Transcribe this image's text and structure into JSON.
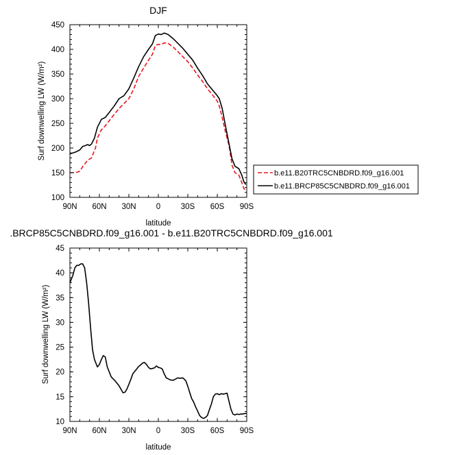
{
  "chart_data": [
    {
      "type": "line",
      "title": "DJF",
      "xlabel": "latitude",
      "ylabel": "Surf downwelling LW (W/m²)",
      "x_ticks": [
        -90,
        -60,
        -30,
        0,
        30,
        60,
        90
      ],
      "x_tick_labels": [
        "90N",
        "60N",
        "30N",
        "0",
        "30S",
        "60S",
        "90S"
      ],
      "xlim": [
        -90,
        90
      ],
      "ylim": [
        100,
        450
      ],
      "y_ticks": [
        100,
        150,
        200,
        250,
        300,
        350,
        400,
        450
      ],
      "y_tick_labels": [
        "100",
        "150",
        "200",
        "250",
        "300",
        "350",
        "400",
        "450"
      ],
      "legend_position": "right",
      "series": [
        {
          "name": "b.e11.B20TRC5CNBDRD.f09_g16.001",
          "color": "#e8141c",
          "style": "dashed",
          "x": [
            -90,
            -84,
            -80,
            -76,
            -72,
            -68,
            -64,
            -62,
            -58,
            -54,
            -50,
            -45,
            -40,
            -35,
            -30,
            -25,
            -20,
            -15,
            -10,
            -6,
            -3,
            0,
            3,
            6,
            10,
            15,
            20,
            25,
            30,
            35,
            40,
            45,
            50,
            55,
            58,
            60,
            62,
            65,
            68,
            72,
            75,
            78,
            82,
            85,
            87,
            89
          ],
          "y": [
            150,
            150,
            153,
            165,
            175,
            180,
            200,
            220,
            237,
            245,
            255,
            268,
            280,
            290,
            300,
            320,
            345,
            362,
            378,
            390,
            408,
            410,
            410,
            413,
            412,
            405,
            395,
            385,
            375,
            362,
            348,
            335,
            320,
            308,
            300,
            295,
            285,
            262,
            235,
            205,
            165,
            150,
            145,
            130,
            118,
            114
          ]
        },
        {
          "name": "b.e11.BRCP85C5CNBDRD.f09_g16.001",
          "color": "#000000",
          "style": "solid",
          "x": [
            -90,
            -84,
            -80,
            -77,
            -74,
            -72,
            -70,
            -68,
            -65,
            -62,
            -58,
            -54,
            -50,
            -45,
            -40,
            -35,
            -30,
            -25,
            -20,
            -15,
            -10,
            -6,
            -3,
            0,
            3,
            6,
            10,
            15,
            20,
            25,
            30,
            35,
            40,
            45,
            50,
            55,
            58,
            60,
            62,
            65,
            68,
            72,
            75,
            78,
            82,
            85,
            87,
            89
          ],
          "y": [
            188,
            192,
            196,
            203,
            205,
            207,
            205,
            208,
            220,
            242,
            258,
            262,
            272,
            285,
            300,
            306,
            320,
            342,
            365,
            385,
            400,
            411,
            428,
            431,
            430,
            433,
            430,
            422,
            412,
            402,
            390,
            378,
            362,
            347,
            330,
            318,
            311,
            306,
            300,
            280,
            248,
            208,
            178,
            163,
            158,
            145,
            132,
            126
          ]
        }
      ]
    },
    {
      "type": "line",
      "title": ".BRCP85C5CNBDRD.f09_g16.001 - b.e11.B20TRC5CNBDRD.f09_g16.001",
      "xlabel": "latitude",
      "ylabel": "Surf downwelling LW (W/m²)",
      "x_ticks": [
        -90,
        -60,
        -30,
        0,
        30,
        60,
        90
      ],
      "x_tick_labels": [
        "90N",
        "60N",
        "30N",
        "0",
        "30S",
        "60S",
        "90S"
      ],
      "xlim": [
        -90,
        90
      ],
      "ylim": [
        10,
        45
      ],
      "y_ticks": [
        10,
        15,
        20,
        25,
        30,
        35,
        40,
        45
      ],
      "y_tick_labels": [
        "10",
        "15",
        "20",
        "25",
        "30",
        "35",
        "40",
        "45"
      ],
      "series": [
        {
          "color": "#000000",
          "style": "solid",
          "x": [
            -90,
            -87,
            -85,
            -83,
            -81,
            -79,
            -77,
            -75,
            -73,
            -71,
            -69,
            -67,
            -65,
            -62,
            -60,
            -58,
            -56,
            -54,
            -52,
            -48,
            -44,
            -40,
            -38,
            -36,
            -34,
            -32,
            -30,
            -28,
            -26,
            -24,
            -22,
            -20,
            -18,
            -16,
            -14,
            -12,
            -10,
            -8,
            -6,
            -4,
            -2,
            0,
            2,
            4,
            6,
            8,
            10,
            12,
            15,
            18,
            20,
            22,
            25,
            28,
            30,
            32,
            34,
            36,
            38,
            40,
            42,
            44,
            46,
            48,
            50,
            52,
            54,
            56,
            58,
            60,
            62,
            64,
            66,
            68,
            70,
            72,
            74,
            76,
            78,
            80,
            82,
            84,
            86,
            88,
            90
          ],
          "y": [
            38.0,
            39.5,
            41.0,
            41.5,
            41.5,
            41.8,
            41.8,
            41.0,
            38.0,
            34.0,
            29.0,
            24.5,
            22.5,
            21.0,
            21.5,
            22.5,
            23.3,
            23.0,
            21.0,
            19.0,
            18.2,
            17.2,
            16.5,
            15.8,
            15.9,
            16.5,
            17.5,
            18.5,
            19.6,
            20.1,
            20.6,
            21.1,
            21.4,
            21.8,
            21.9,
            21.5,
            20.9,
            20.6,
            20.7,
            20.8,
            21.2,
            20.9,
            20.8,
            20.6,
            19.6,
            18.8,
            18.6,
            18.4,
            18.3,
            18.6,
            18.8,
            18.7,
            18.8,
            18.2,
            17.1,
            15.8,
            14.6,
            13.9,
            12.9,
            12.1,
            11.2,
            10.8,
            10.6,
            10.8,
            11.2,
            12.4,
            13.5,
            15.0,
            15.5,
            15.6,
            15.4,
            15.6,
            15.5,
            15.6,
            15.7,
            14.0,
            12.4,
            11.5,
            11.3,
            11.5,
            11.4,
            11.5,
            11.5,
            11.6,
            11.6
          ]
        }
      ]
    }
  ]
}
